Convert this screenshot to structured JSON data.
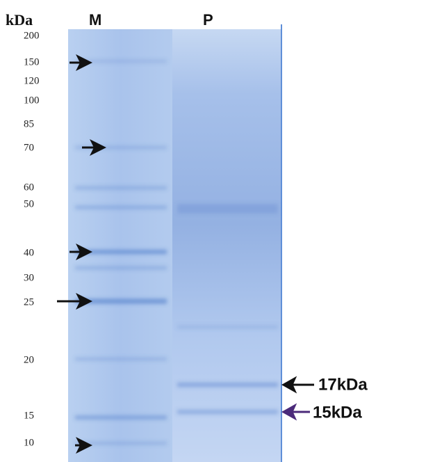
{
  "header": {
    "unit": "kDa",
    "lanes": [
      "M",
      "P"
    ]
  },
  "markers": [
    "200",
    "150",
    "120",
    "100",
    "85",
    "70",
    "60",
    "50",
    "40",
    "30",
    "25",
    "20",
    "15",
    "10"
  ],
  "annotations": [
    "17kDa",
    "15kDa"
  ]
}
